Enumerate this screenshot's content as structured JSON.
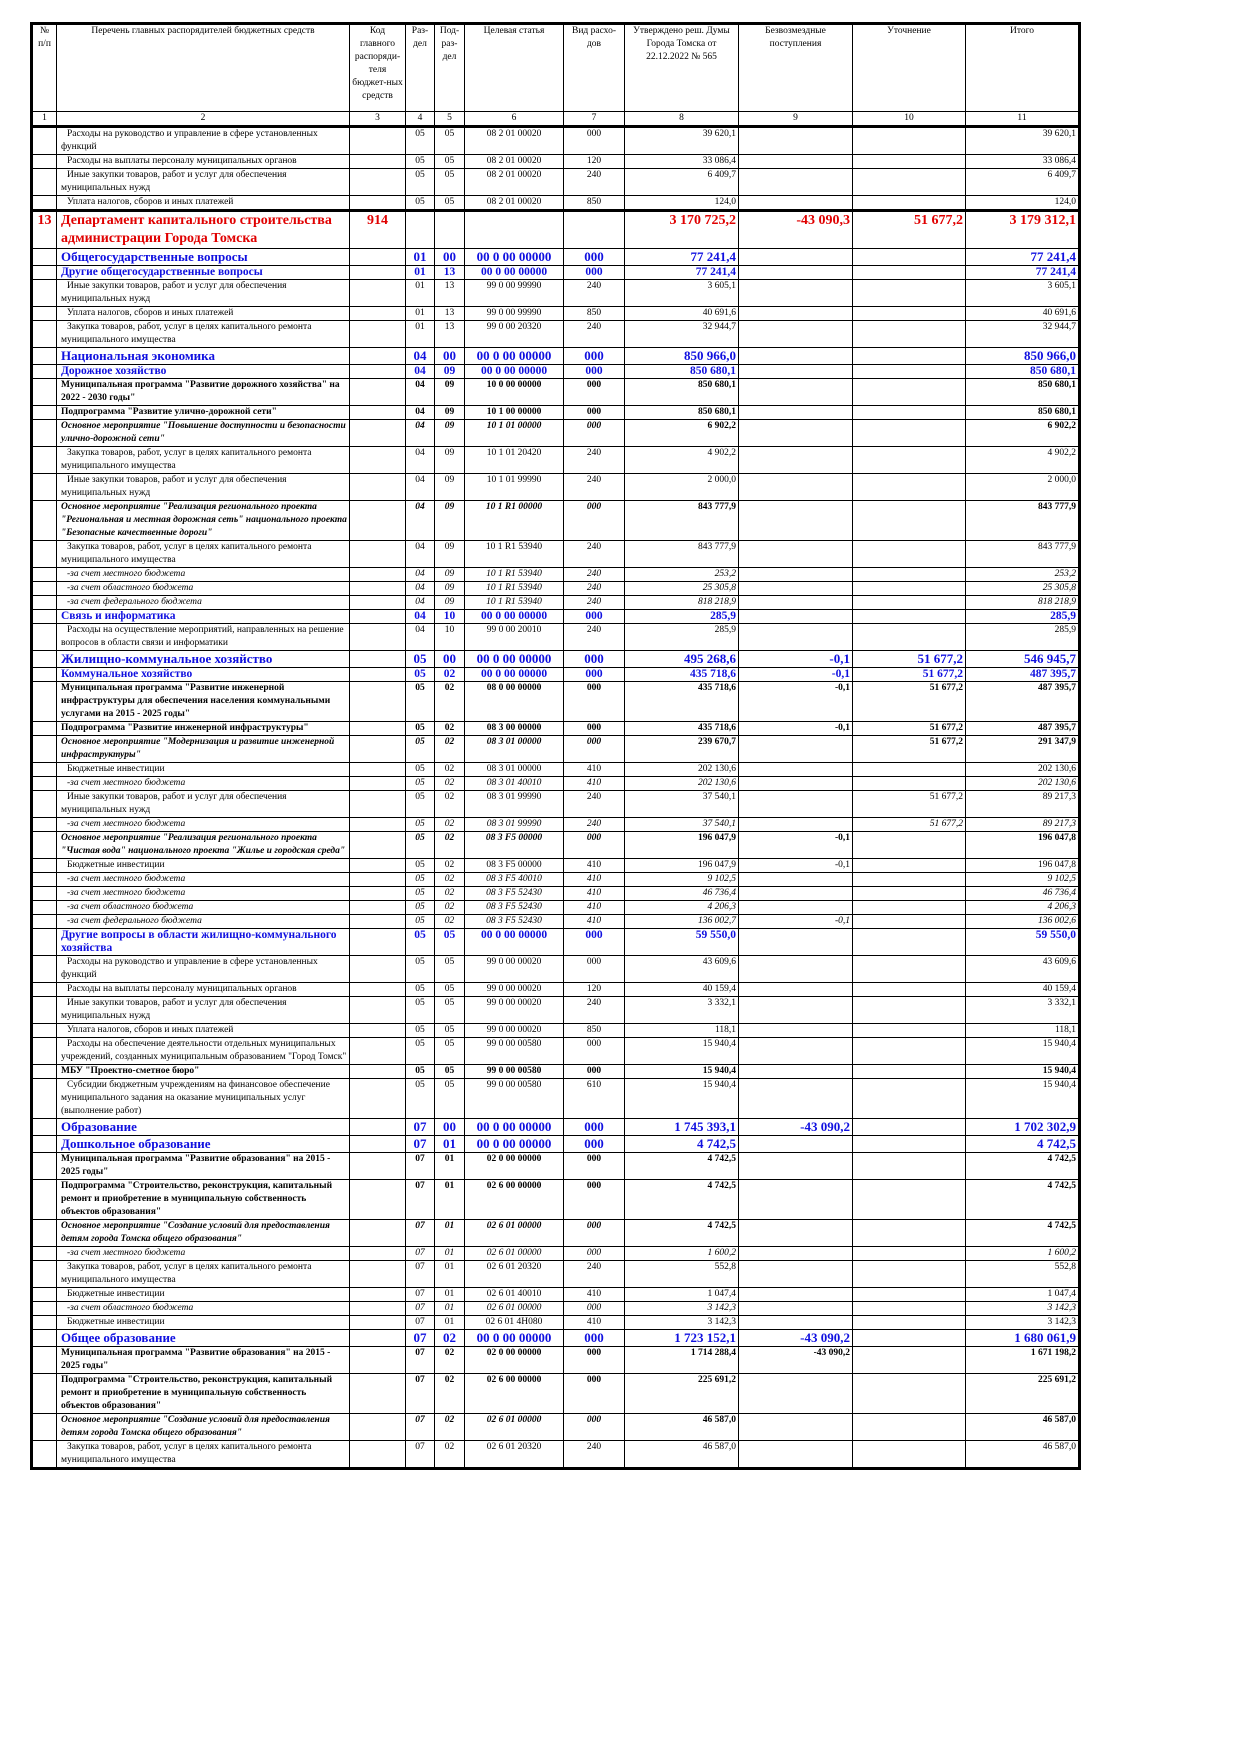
{
  "header": [
    "№ п/п",
    "Перечень главных распорядителей бюджетных средств",
    "Код главного распоряди-теля бюджет-ных средств",
    "Раз-дел",
    "Под-раз-дел",
    "Целевая статья",
    "Вид расхо-дов",
    "Утверждено реш. Думы Города Томска от 22.12.2022 № 565",
    "Безвозмездные поступления",
    "Уточнение",
    "Итого"
  ],
  "col_numbers": [
    "1",
    "2",
    "3",
    "4",
    "5",
    "6",
    "7",
    "8",
    "9",
    "10",
    "11"
  ],
  "colors": {
    "department": "#e00000",
    "section": "#1010e0"
  },
  "rows": [
    [
      "n",
      "",
      "Расходы на руководство и управление в сфере установленных функций",
      "",
      "05",
      "05",
      "08 2 01 00020",
      "000",
      "39 620,1",
      "",
      "",
      "39 620,1"
    ],
    [
      "n",
      "",
      "Расходы на выплаты персоналу муниципальных органов",
      "",
      "05",
      "05",
      "08 2 01 00020",
      "120",
      "33 086,4",
      "",
      "",
      "33 086,4"
    ],
    [
      "n",
      "",
      "Иные закупки товаров, работ и услуг для обеспечения муниципальных нужд",
      "",
      "05",
      "05",
      "08 2 01 00020",
      "240",
      "6 409,7",
      "",
      "",
      "6 409,7"
    ],
    [
      "n",
      "",
      "Уплата налогов, сборов и иных платежей",
      "",
      "05",
      "05",
      "08 2 01 00020",
      "850",
      "124,0",
      "",
      "",
      "124,0"
    ],
    [
      "r",
      "13",
      "Департамент капитального строительства администрации Города Томска",
      "914",
      "",
      "",
      "",
      "",
      "3 170 725,2",
      "-43 090,3",
      "51 677,2",
      "3 179 312,1"
    ],
    [
      "s",
      "",
      "Общегосударственные вопросы",
      "",
      "01",
      "00",
      "00 0 00 00000",
      "000",
      "77 241,4",
      "",
      "",
      "77 241,4"
    ],
    [
      "s2",
      "",
      "Другие общегосударственные вопросы",
      "",
      "01",
      "13",
      "00 0 00 00000",
      "000",
      "77 241,4",
      "",
      "",
      "77 241,4"
    ],
    [
      "n",
      "",
      "Иные закупки товаров, работ и услуг для обеспечения муниципальных нужд",
      "",
      "01",
      "13",
      "99 0 00 99990",
      "240",
      "3 605,1",
      "",
      "",
      "3 605,1"
    ],
    [
      "n",
      "",
      "Уплата налогов, сборов и иных платежей",
      "",
      "01",
      "13",
      "99 0 00 99990",
      "850",
      "40 691,6",
      "",
      "",
      "40 691,6"
    ],
    [
      "n",
      "",
      "Закупка товаров, работ, услуг в целях капитального ремонта муниципального имущества",
      "",
      "01",
      "13",
      "99 0 00 20320",
      "240",
      "32 944,7",
      "",
      "",
      "32 944,7"
    ],
    [
      "s",
      "",
      "Национальная экономика",
      "",
      "04",
      "00",
      "00 0 00 00000",
      "000",
      "850 966,0",
      "",
      "",
      "850 966,0"
    ],
    [
      "s2",
      "",
      "Дорожное хозяйство",
      "",
      "04",
      "09",
      "00 0 00 00000",
      "000",
      "850 680,1",
      "",
      "",
      "850 680,1"
    ],
    [
      "b",
      "",
      "Муниципальная программа \"Развитие дорожного хозяйства\" на 2022 - 2030 годы\"",
      "",
      "04",
      "09",
      "10 0 00 00000",
      "000",
      "850 680,1",
      "",
      "",
      "850 680,1"
    ],
    [
      "b",
      "",
      "Подпрограмма \"Развитие улично-дорожной сети\"",
      "",
      "04",
      "09",
      "10 1 00 00000",
      "000",
      "850 680,1",
      "",
      "",
      "850 680,1"
    ],
    [
      "bi",
      "",
      "Основное мероприятие \"Повышение доступности и безопасности улично-дорожной сети\"",
      "",
      "04",
      "09",
      "10 1 01 00000",
      "000",
      "6 902,2",
      "",
      "",
      "6 902,2"
    ],
    [
      "n",
      "",
      "Закупка товаров, работ, услуг в целях капитального ремонта муниципального имущества",
      "",
      "04",
      "09",
      "10 1 01 20420",
      "240",
      "4 902,2",
      "",
      "",
      "4 902,2"
    ],
    [
      "n",
      "",
      "Иные закупки товаров, работ и услуг для обеспечения муниципальных нужд",
      "",
      "04",
      "09",
      "10 1 01 99990",
      "240",
      "2 000,0",
      "",
      "",
      "2 000,0"
    ],
    [
      "bi",
      "",
      "Основное мероприятие \"Реализация регионального проекта \"Региональная и местная дорожная сеть\" национального проекта \"Безопасные качественные дороги\"",
      "",
      "04",
      "09",
      "10 1 R1 00000",
      "000",
      "843 777,9",
      "",
      "",
      "843 777,9"
    ],
    [
      "n",
      "",
      "Закупка товаров, работ, услуг в целях капитального ремонта муниципального имущества",
      "",
      "04",
      "09",
      "10 1 R1 53940",
      "240",
      "843 777,9",
      "",
      "",
      "843 777,9"
    ],
    [
      "i",
      "",
      "-за счет местного бюджета",
      "",
      "04",
      "09",
      "10 1 R1 53940",
      "240",
      "253,2",
      "",
      "",
      "253,2"
    ],
    [
      "i",
      "",
      "-за счет областного бюджета",
      "",
      "04",
      "09",
      "10 1 R1 53940",
      "240",
      "25 305,8",
      "",
      "",
      "25 305,8"
    ],
    [
      "i",
      "",
      "-за счет федерального бюджета",
      "",
      "04",
      "09",
      "10 1 R1 53940",
      "240",
      "818 218,9",
      "",
      "",
      "818 218,9"
    ],
    [
      "s2",
      "",
      "Связь и информатика",
      "",
      "04",
      "10",
      "00 0 00 00000",
      "000",
      "285,9",
      "",
      "",
      "285,9"
    ],
    [
      "n",
      "",
      "Расходы на осуществление мероприятий, направленных на решение вопросов в области связи и информатики",
      "",
      "04",
      "10",
      "99 0 00 20010",
      "240",
      "285,9",
      "",
      "",
      "285,9"
    ],
    [
      "s",
      "",
      "Жилищно-коммунальное хозяйство",
      "",
      "05",
      "00",
      "00 0 00 00000",
      "000",
      "495 268,6",
      "-0,1",
      "51 677,2",
      "546 945,7"
    ],
    [
      "s2",
      "",
      "Коммунальное хозяйство",
      "",
      "05",
      "02",
      "00 0 00 00000",
      "000",
      "435 718,6",
      "-0,1",
      "51 677,2",
      "487 395,7"
    ],
    [
      "b",
      "",
      "Муниципальная программа \"Развитие инженерной инфраструктуры для обеспечения населения коммунальными услугами на 2015 - 2025 годы\"",
      "",
      "05",
      "02",
      "08 0 00 00000",
      "000",
      "435 718,6",
      "-0,1",
      "51 677,2",
      "487 395,7"
    ],
    [
      "b",
      "",
      "Подпрограмма \"Развитие инженерной инфраструктуры\"",
      "",
      "05",
      "02",
      "08 3 00 00000",
      "000",
      "435 718,6",
      "-0,1",
      "51 677,2",
      "487 395,7"
    ],
    [
      "bi",
      "",
      "Основное мероприятие \"Модернизация и развитие инженерной инфраструктуры\"",
      "",
      "05",
      "02",
      "08 3 01 00000",
      "000",
      "239 670,7",
      "",
      "51 677,2",
      "291 347,9"
    ],
    [
      "n",
      "",
      "Бюджетные инвестиции",
      "",
      "05",
      "02",
      "08 3 01 00000",
      "410",
      "202 130,6",
      "",
      "",
      "202 130,6"
    ],
    [
      "i",
      "",
      "-за счет местного бюджета",
      "",
      "05",
      "02",
      "08 3 01 40010",
      "410",
      "202 130,6",
      "",
      "",
      "202 130,6"
    ],
    [
      "n",
      "",
      "Иные закупки товаров, работ и услуг для обеспечения муниципальных нужд",
      "",
      "05",
      "02",
      "08 3 01 99990",
      "240",
      "37 540,1",
      "",
      "51 677,2",
      "89 217,3"
    ],
    [
      "i",
      "",
      "-за счет местного бюджета",
      "",
      "05",
      "02",
      "08 3 01 99990",
      "240",
      "37 540,1",
      "",
      "51 677,2",
      "89 217,3"
    ],
    [
      "bi",
      "",
      "Основное мероприятие \"Реализация регионального проекта \"Чистая вода\" национального проекта \"Жилье и городская среда\"",
      "",
      "05",
      "02",
      "08 3 F5 00000",
      "000",
      "196 047,9",
      "-0,1",
      "",
      "196 047,8"
    ],
    [
      "n",
      "",
      "Бюджетные инвестиции",
      "",
      "05",
      "02",
      "08 3 F5 00000",
      "410",
      "196 047,9",
      "-0,1",
      "",
      "196 047,8"
    ],
    [
      "i",
      "",
      "-за счет местного бюджета",
      "",
      "05",
      "02",
      "08 3 F5 40010",
      "410",
      "9 102,5",
      "",
      "",
      "9 102,5"
    ],
    [
      "i",
      "",
      "-за счет местного бюджета",
      "",
      "05",
      "02",
      "08 3 F5 52430",
      "410",
      "46 736,4",
      "",
      "",
      "46 736,4"
    ],
    [
      "i",
      "",
      "-за счет областного бюджета",
      "",
      "05",
      "02",
      "08 3 F5 52430",
      "410",
      "4 206,3",
      "",
      "",
      "4 206,3"
    ],
    [
      "i",
      "",
      "-за счет федерального бюджета",
      "",
      "05",
      "02",
      "08 3 F5 52430",
      "410",
      "136 002,7",
      "-0,1",
      "",
      "136 002,6"
    ],
    [
      "s2",
      "",
      "Другие вопросы в области жилищно-коммунального хозяйства",
      "",
      "05",
      "05",
      "00 0 00 00000",
      "000",
      "59 550,0",
      "",
      "",
      "59 550,0"
    ],
    [
      "n",
      "",
      "Расходы на руководство и управление в сфере установленных функций",
      "",
      "05",
      "05",
      "99 0 00 00020",
      "000",
      "43 609,6",
      "",
      "",
      "43 609,6"
    ],
    [
      "n",
      "",
      "Расходы на выплаты персоналу муниципальных органов",
      "",
      "05",
      "05",
      "99 0 00 00020",
      "120",
      "40 159,4",
      "",
      "",
      "40 159,4"
    ],
    [
      "n",
      "",
      "Иные закупки товаров, работ и услуг для обеспечения муниципальных нужд",
      "",
      "05",
      "05",
      "99 0 00 00020",
      "240",
      "3 332,1",
      "",
      "",
      "3 332,1"
    ],
    [
      "n",
      "",
      "Уплата налогов, сборов и иных платежей",
      "",
      "05",
      "05",
      "99 0 00 00020",
      "850",
      "118,1",
      "",
      "",
      "118,1"
    ],
    [
      "n",
      "",
      "Расходы на обеспечение деятельности отдельных муниципальных учреждений, созданных муниципальным образованием \"Город Томск\"",
      "",
      "05",
      "05",
      "99 0 00 00580",
      "000",
      "15 940,4",
      "",
      "",
      "15 940,4"
    ],
    [
      "b",
      "",
      "МБУ \"Проектно-сметное бюро\"",
      "",
      "05",
      "05",
      "99 0 00 00580",
      "000",
      "15 940,4",
      "",
      "",
      "15 940,4"
    ],
    [
      "n",
      "",
      "Субсидии бюджетным учреждениям на финансовое обеспечение муниципального задания на оказание муниципальных услуг (выполнение работ)",
      "",
      "05",
      "05",
      "99 0 00 00580",
      "610",
      "15 940,4",
      "",
      "",
      "15 940,4"
    ],
    [
      "s",
      "",
      "Образование",
      "",
      "07",
      "00",
      "00 0 00 00000",
      "000",
      "1 745 393,1",
      "-43 090,2",
      "",
      "1 702 302,9"
    ],
    [
      "s",
      "",
      "Дошкольное образование",
      "",
      "07",
      "01",
      "00 0 00 00000",
      "000",
      "4 742,5",
      "",
      "",
      "4 742,5"
    ],
    [
      "b",
      "",
      "Муниципальная программа \"Развитие образования\" на 2015 - 2025 годы\"",
      "",
      "07",
      "01",
      "02 0 00 00000",
      "000",
      "4 742,5",
      "",
      "",
      "4 742,5"
    ],
    [
      "b",
      "",
      "Подпрограмма \"Строительство, реконструкция, капитальный ремонт и приобретение в муниципальную собственность объектов образования\"",
      "",
      "07",
      "01",
      "02 6 00 00000",
      "000",
      "4 742,5",
      "",
      "",
      "4 742,5"
    ],
    [
      "bi",
      "",
      "Основное мероприятие \"Создание условий для предоставления детям города Томска общего образования\"",
      "",
      "07",
      "01",
      "02 6 01 00000",
      "000",
      "4 742,5",
      "",
      "",
      "4 742,5"
    ],
    [
      "i",
      "",
      "-за счет местного бюджета",
      "",
      "07",
      "01",
      "02 6 01 00000",
      "000",
      "1 600,2",
      "",
      "",
      "1 600,2"
    ],
    [
      "n",
      "",
      "Закупка товаров, работ, услуг в целях капитального ремонта муниципального имущества",
      "",
      "07",
      "01",
      "02 6 01 20320",
      "240",
      "552,8",
      "",
      "",
      "552,8"
    ],
    [
      "n",
      "",
      "Бюджетные инвестиции",
      "",
      "07",
      "01",
      "02 6 01 40010",
      "410",
      "1 047,4",
      "",
      "",
      "1 047,4"
    ],
    [
      "i",
      "",
      "-за счет областного бюджета",
      "",
      "07",
      "01",
      "02 6 01 00000",
      "000",
      "3 142,3",
      "",
      "",
      "3 142,3"
    ],
    [
      "n",
      "",
      "Бюджетные инвестиции",
      "",
      "07",
      "01",
      "02 6 01 4Н080",
      "410",
      "3 142,3",
      "",
      "",
      "3 142,3"
    ],
    [
      "s",
      "",
      "Общее образование",
      "",
      "07",
      "02",
      "00 0 00 00000",
      "000",
      "1 723 152,1",
      "-43 090,2",
      "",
      "1 680 061,9"
    ],
    [
      "b",
      "",
      "Муниципальная программа \"Развитие образования\" на 2015 - 2025 годы\"",
      "",
      "07",
      "02",
      "02 0 00 00000",
      "000",
      "1 714 288,4",
      "-43 090,2",
      "",
      "1 671 198,2"
    ],
    [
      "b",
      "",
      "Подпрограмма \"Строительство, реконструкция, капитальный ремонт и приобретение в муниципальную собственность объектов образования\"",
      "",
      "07",
      "02",
      "02 6 00 00000",
      "000",
      "225 691,2",
      "",
      "",
      "225 691,2"
    ],
    [
      "bi",
      "",
      "Основное мероприятие \"Создание условий для предоставления детям города Томска общего образования\"",
      "",
      "07",
      "02",
      "02 6 01 00000",
      "000",
      "46 587,0",
      "",
      "",
      "46 587,0"
    ],
    [
      "n",
      "",
      "Закупка товаров, работ, услуг в целях капитального ремонта муниципального имущества",
      "",
      "07",
      "02",
      "02 6 01 20320",
      "240",
      "46 587,0",
      "",
      "",
      "46 587,0"
    ]
  ]
}
